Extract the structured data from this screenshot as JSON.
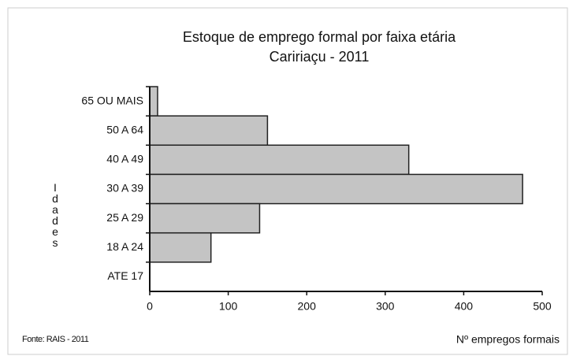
{
  "chart_data": {
    "type": "bar",
    "orientation": "horizontal",
    "title": "Estoque de emprego formal por faixa etária",
    "subtitle": "Caririaçu - 2011",
    "categories": [
      "65 OU MAIS",
      "50 A 64",
      "40 A 49",
      "30 A 39",
      "25 A 29",
      "18 A 24",
      "ATE 17"
    ],
    "values": [
      10,
      150,
      330,
      475,
      140,
      78,
      0
    ],
    "color": "#c4c4c4",
    "xlim": [
      0,
      500
    ],
    "xticks": [
      0,
      100,
      200,
      300,
      400,
      500
    ],
    "xlabel": "Nº empregos formais",
    "ylabel": "Idades",
    "source": "Fonte: RAIS - 2011",
    "grid": false
  }
}
